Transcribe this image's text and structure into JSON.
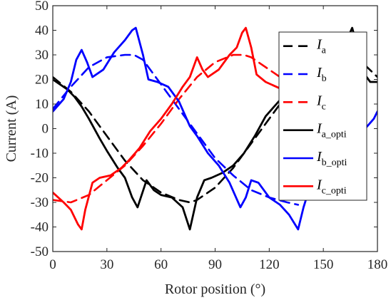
{
  "chart_data": {
    "type": "line",
    "xlabel": "Rotor position (°)",
    "ylabel": "Current (A)",
    "xlim": [
      0,
      180
    ],
    "ylim": [
      -50,
      50
    ],
    "x_ticks": [
      0,
      30,
      60,
      90,
      120,
      150,
      180
    ],
    "y_ticks": [
      50,
      40,
      30,
      20,
      10,
      0,
      -10,
      -20,
      -30,
      -40,
      -50
    ],
    "grid": false,
    "legend_position": "right",
    "series": [
      {
        "name": "I_a",
        "label_main": "I",
        "label_sub": "a",
        "color": "#000000",
        "style": "dashed",
        "x": [
          0,
          10,
          20,
          30,
          40,
          50,
          60,
          70,
          76,
          80,
          90,
          100,
          110,
          120,
          130,
          140,
          150,
          160,
          170,
          180
        ],
        "y": [
          21,
          15,
          7,
          -3,
          -13,
          -21,
          -26,
          -29,
          -30,
          -29,
          -24,
          -16,
          -6,
          4,
          14,
          22,
          28,
          31,
          28,
          21
        ]
      },
      {
        "name": "I_b",
        "label_main": "I",
        "label_sub": "b",
        "color": "#0000ff",
        "style": "dashed",
        "x": [
          0,
          10,
          20,
          30,
          40,
          45,
          50,
          60,
          70,
          80,
          90,
          100,
          110,
          120,
          130,
          136
        ],
        "y": [
          8,
          17,
          25,
          29,
          30,
          30,
          28,
          18,
          8,
          -2,
          -12,
          -19,
          -25,
          -28,
          -30,
          -31
        ]
      },
      {
        "name": "I_c",
        "label_main": "I",
        "label_sub": "c",
        "color": "#ff0000",
        "style": "dashed",
        "x": [
          0,
          10,
          20,
          30,
          40,
          50,
          60,
          70,
          80,
          90,
          100,
          106,
          110,
          120,
          130
        ],
        "y": [
          -29,
          -30,
          -27,
          -21,
          -15,
          -7,
          2,
          12,
          21,
          27,
          30,
          30,
          29,
          24,
          19
        ]
      },
      {
        "name": "I_a_opti",
        "label_main": "I",
        "label_sub": "a_opti",
        "color": "#000000",
        "style": "solid",
        "x": [
          0,
          8,
          12,
          16,
          20,
          26,
          30,
          36,
          40,
          44,
          47,
          52,
          56,
          60,
          66,
          72,
          76,
          80,
          84,
          88,
          94,
          100,
          106,
          112,
          118,
          124,
          130,
          136,
          142,
          148,
          154,
          160,
          163,
          166,
          169,
          172,
          176,
          180
        ],
        "y": [
          20,
          16,
          13,
          9,
          4,
          -4,
          -9,
          -16,
          -20,
          -28,
          -32,
          -21,
          -25,
          -27,
          -28,
          -32,
          -41,
          -28,
          -21,
          -20,
          -18,
          -15,
          -10,
          -3,
          5,
          10,
          15,
          20,
          25,
          27,
          30,
          31,
          36,
          41,
          33,
          23,
          19,
          19
        ]
      },
      {
        "name": "I_b_opti",
        "label_main": "I",
        "label_sub": "b_opti",
        "color": "#0000ff",
        "style": "solid",
        "x": [
          0,
          6,
          10,
          13,
          16,
          19,
          22,
          28,
          34,
          40,
          44,
          46,
          50,
          53,
          58,
          64,
          70,
          76,
          80,
          86,
          92,
          98,
          104,
          107,
          110,
          114,
          120,
          126,
          131,
          136,
          139,
          142,
          148,
          154,
          160,
          166,
          172,
          178,
          180
        ],
        "y": [
          7,
          12,
          19,
          28,
          32,
          27,
          21,
          24,
          31,
          36,
          40,
          41,
          30,
          20,
          19,
          17,
          11,
          1,
          -3,
          -10,
          -15,
          -22,
          -32,
          -28,
          -21,
          -22,
          -28,
          -31,
          -35,
          -41,
          -32,
          -25,
          -20,
          -15,
          -10,
          -6,
          -1,
          4,
          7
        ]
      },
      {
        "name": "I_c_opti",
        "label_main": "I",
        "label_sub": "c_opti",
        "color": "#ff0000",
        "style": "solid",
        "x": [
          0,
          6,
          10,
          14,
          16,
          18,
          22,
          26,
          32,
          38,
          42,
          48,
          54,
          60,
          66,
          72,
          76,
          80,
          83,
          86,
          92,
          98,
          102,
          105,
          107,
          110,
          113,
          118,
          124,
          130
        ],
        "y": [
          -26,
          -30,
          -33,
          -39,
          -41,
          -33,
          -22,
          -20,
          -19,
          -16,
          -13,
          -8,
          -1,
          4,
          10,
          17,
          21,
          29,
          24,
          21,
          24,
          30,
          33,
          39,
          41,
          33,
          22,
          19,
          17,
          15
        ]
      }
    ]
  }
}
